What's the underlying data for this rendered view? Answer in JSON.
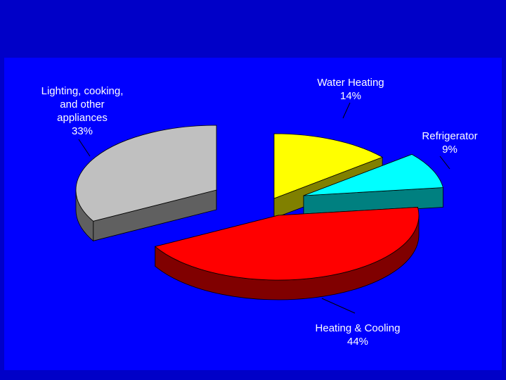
{
  "chart_data": {
    "type": "pie",
    "title": "",
    "slices": [
      {
        "name": "Water Heating",
        "value": 14,
        "label": "14%",
        "color": "#ffff00",
        "side_color": "#808000"
      },
      {
        "name": "Refrigerator",
        "value": 9,
        "label": "9%",
        "color": "#00ffff",
        "side_color": "#008080"
      },
      {
        "name": "Heating & Cooling",
        "value": 44,
        "label": "44%",
        "color": "#ff0000",
        "side_color": "#800000"
      },
      {
        "name": "Lighting, cooking, and other appliances",
        "value": 33,
        "label": "33%",
        "color": "#c0c0c0",
        "side_color": "#606060"
      }
    ],
    "exploded": true,
    "three_d": true
  },
  "labels": {
    "lighting_line1": "Lighting, cooking,",
    "lighting_line2": "and other",
    "lighting_line3": "appliances",
    "lighting_pct": "33%",
    "water_line1": "Water Heating",
    "water_pct": "14%",
    "fridge_line1": "Refrigerator",
    "fridge_pct": "9%",
    "heating_line1": "Heating & Cooling",
    "heating_pct": "44%"
  },
  "colors": {
    "slide_background": "#0000c8",
    "plot_background": "#0000ff",
    "label_text": "#ffffff"
  }
}
